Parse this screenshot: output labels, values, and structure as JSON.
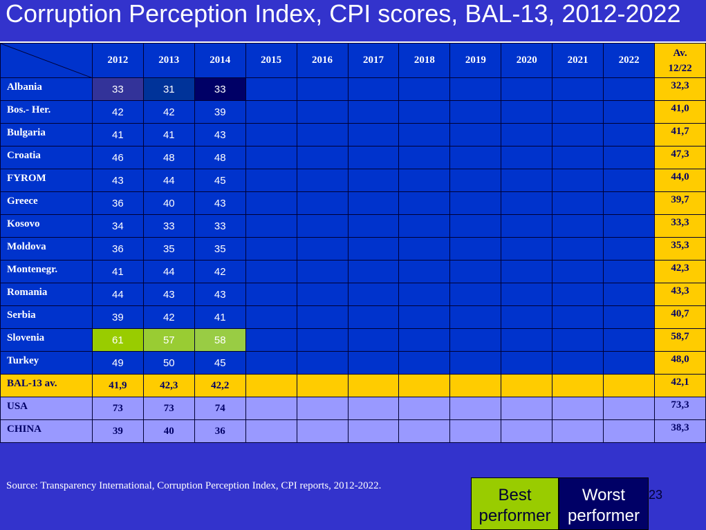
{
  "title": "Corruption Perception Index,  CPI scores, BAL-13, 2012-2022",
  "table": {
    "years": [
      "2012",
      "2013",
      "2014",
      "2015",
      "2016",
      "2017",
      "2018",
      "2019",
      "2020",
      "2021",
      "2022"
    ],
    "avg_header_line1": "Av.",
    "avg_header_line2": "12/22",
    "rows": [
      {
        "country": "Albania",
        "values": [
          "33",
          "31",
          "33",
          "",
          "",
          "",
          "",
          "",
          "",
          "",
          ""
        ],
        "avg": "32,3"
      },
      {
        "country": "Bos.- Her.",
        "values": [
          "42",
          "42",
          "39",
          "",
          "",
          "",
          "",
          "",
          "",
          "",
          ""
        ],
        "avg": "41,0"
      },
      {
        "country": "Bulgaria",
        "values": [
          "41",
          "41",
          "43",
          "",
          "",
          "",
          "",
          "",
          "",
          "",
          ""
        ],
        "avg": "41,7"
      },
      {
        "country": "Croatia",
        "values": [
          "46",
          "48",
          "48",
          "",
          "",
          "",
          "",
          "",
          "",
          "",
          ""
        ],
        "avg": "47,3"
      },
      {
        "country": "FYROM",
        "values": [
          "43",
          "44",
          "45",
          "",
          "",
          "",
          "",
          "",
          "",
          "",
          ""
        ],
        "avg": "44,0"
      },
      {
        "country": "Greece",
        "values": [
          "36",
          "40",
          "43",
          "",
          "",
          "",
          "",
          "",
          "",
          "",
          ""
        ],
        "avg": "39,7"
      },
      {
        "country": "Kosovo",
        "values": [
          "34",
          "33",
          "33",
          "",
          "",
          "",
          "",
          "",
          "",
          "",
          ""
        ],
        "avg": "33,3"
      },
      {
        "country": "Moldova",
        "values": [
          "36",
          "35",
          "35",
          "",
          "",
          "",
          "",
          "",
          "",
          "",
          ""
        ],
        "avg": "35,3"
      },
      {
        "country": "Montenegr.",
        "values": [
          "41",
          "44",
          "42",
          "",
          "",
          "",
          "",
          "",
          "",
          "",
          ""
        ],
        "avg": "42,3"
      },
      {
        "country": "Romania",
        "values": [
          "44",
          "43",
          "43",
          "",
          "",
          "",
          "",
          "",
          "",
          "",
          ""
        ],
        "avg": "43,3"
      },
      {
        "country": "Serbia",
        "values": [
          "39",
          "42",
          "41",
          "",
          "",
          "",
          "",
          "",
          "",
          "",
          ""
        ],
        "avg": "40,7"
      },
      {
        "country": "Slovenia",
        "values": [
          "61",
          "57",
          "58",
          "",
          "",
          "",
          "",
          "",
          "",
          "",
          ""
        ],
        "avg": "58,7"
      },
      {
        "country": "Turkey",
        "values": [
          "49",
          "50",
          "45",
          "",
          "",
          "",
          "",
          "",
          "",
          "",
          ""
        ],
        "avg": "48,0"
      }
    ],
    "bal_row": {
      "country": "BAL-13 av.",
      "values": [
        "41,9",
        "42,3",
        "42,2",
        "",
        "",
        "",
        "",
        "",
        "",
        "",
        ""
      ],
      "avg": "42,1"
    },
    "ext_rows": [
      {
        "country": "USA",
        "values": [
          "73",
          "73",
          "74",
          "",
          "",
          "",
          "",
          "",
          "",
          "",
          ""
        ],
        "avg": "73,3"
      },
      {
        "country": "CHINA",
        "values": [
          "39",
          "40",
          "36",
          "",
          "",
          "",
          "",
          "",
          "",
          "",
          ""
        ],
        "avg": "38,3"
      }
    ]
  },
  "source": "Source: Transparency International, Corruption Perception Index, CPI reports, 2012-2022.",
  "legend": {
    "best_line1": "Best",
    "best_line2": "performer",
    "worst_line1": "Worst",
    "worst_line2": "performer"
  },
  "page_number": "23",
  "colors": {
    "background": "#3333cc",
    "table_blue": "#0033cc",
    "avg_yellow": "#ffcc00",
    "ext_lavender": "#9999ff",
    "best_green": "#99cc00",
    "worst_navy": "#000066"
  }
}
